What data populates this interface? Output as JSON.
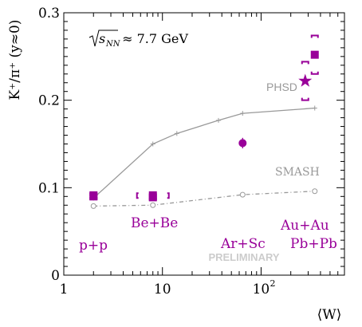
{
  "chart_data": {
    "type": "scatter",
    "x_scale": "log",
    "xlim": [
      1,
      700
    ],
    "ylim": [
      0,
      0.3
    ],
    "xlabel": "⟨W⟩",
    "ylabel": "K⁺/π⁺ (y≈0)",
    "annotation_energy": {
      "sqrt_label": "s",
      "sqrt_sub": "NN",
      "value_text": " ≈ 7.7 GeV"
    },
    "watermark": "PRELIMINARY",
    "x_ticks": [
      {
        "value": 1,
        "label": "1",
        "exp": ""
      },
      {
        "value": 10,
        "label": "10",
        "exp": ""
      },
      {
        "value": 100,
        "label": "10",
        "exp": "2"
      }
    ],
    "y_ticks": [
      {
        "value": 0,
        "label": "0"
      },
      {
        "value": 0.1,
        "label": "0.1"
      },
      {
        "value": 0.2,
        "label": "0.2"
      },
      {
        "value": 0.3,
        "label": "0.3"
      }
    ],
    "system_labels": [
      "p+p",
      "Be+Be",
      "Ar+Sc",
      "Au+Au",
      "Pb+Pb"
    ],
    "model_labels": [
      "PHSD",
      "SMASH"
    ],
    "series": [
      {
        "name": "PHSD",
        "color": "#999999",
        "style": "solid",
        "marker": "cross",
        "points": [
          [
            2,
            0.088
          ],
          [
            8,
            0.15
          ],
          [
            14,
            0.162
          ],
          [
            37,
            0.177
          ],
          [
            65,
            0.185
          ],
          [
            350,
            0.191
          ]
        ]
      },
      {
        "name": "SMASH",
        "color": "#999999",
        "style": "dashdot",
        "marker": "open-circle",
        "points": [
          [
            2,
            0.079
          ],
          [
            8,
            0.08
          ],
          [
            65,
            0.092
          ],
          [
            350,
            0.096
          ]
        ]
      }
    ],
    "data_points": [
      {
        "system": "p+p",
        "marker": "circle",
        "x": 2,
        "y": 0.091,
        "stat_err": 0.003,
        "sys_err": 0.004,
        "color": "#990099"
      },
      {
        "system": "Be+Be",
        "marker": "circle",
        "x": 8,
        "y": 0.091,
        "stat_err": 0.003,
        "sys_err": 0.004,
        "color": "#990099"
      },
      {
        "system": "Ar+Sc",
        "marker": "circle",
        "x": 65,
        "y": 0.151,
        "stat_err": 0.006,
        "sys_err": 0.0,
        "color": "#990099"
      },
      {
        "system": "Au+Au",
        "marker": "star",
        "x": 280,
        "y": 0.222,
        "stat_err": 0.0,
        "sys_err": 0.022,
        "color": "#990099"
      },
      {
        "system": "Pb+Pb",
        "marker": "square",
        "x": 350,
        "y": 0.252,
        "stat_err": 0.004,
        "sys_err": 0.022,
        "color": "#990099"
      },
      {
        "system": "p+p",
        "marker": "square",
        "x": 2,
        "y": 0.09,
        "stat_err": 0.002,
        "sys_err": 0.003,
        "color": "#990099"
      },
      {
        "system": "Be+Be",
        "marker": "square",
        "x": 8,
        "y": 0.089,
        "stat_err": 0.002,
        "sys_err": 0.003,
        "color": "#990099"
      }
    ]
  }
}
